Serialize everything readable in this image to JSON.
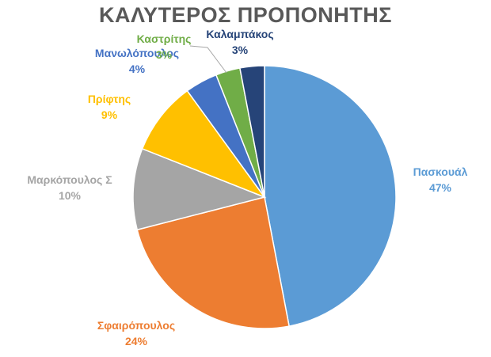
{
  "chart_data": {
    "type": "pie",
    "title": "ΚΑΛΥΤΕΡΟΣ ΠΡΟΠΟΝΗΤΗΣ",
    "slices": [
      {
        "name": "Πασκουάλ",
        "value": 47,
        "label": "47%",
        "color": "#5B9BD5"
      },
      {
        "name": "Σφαιρόπουλος",
        "value": 24,
        "label": "24%",
        "color": "#ED7D31"
      },
      {
        "name": "Μαρκόπουλος Σ",
        "value": 10,
        "label": "10%",
        "color": "#A5A5A5"
      },
      {
        "name": "Πρίφτης",
        "value": 9,
        "label": "9%",
        "color": "#FFC000"
      },
      {
        "name": "Μανωλόπουλος",
        "value": 4,
        "label": "4%",
        "color": "#4472C4"
      },
      {
        "name": "Καστρίτης",
        "value": 3,
        "label": "3%",
        "color": "#70AD47"
      },
      {
        "name": "Καλαμπάκος",
        "value": 3,
        "label": "3%",
        "color": "#264478"
      }
    ],
    "legend": "none"
  }
}
